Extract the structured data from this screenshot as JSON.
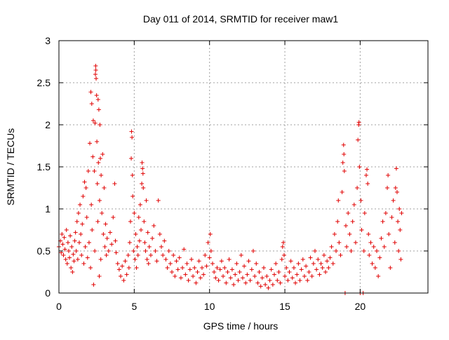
{
  "chart_data": {
    "type": "scatter",
    "title": "Day 011 of 2014, SRMTID for receiver maw1",
    "xlabel": "GPS time / hours",
    "ylabel": "SRMTID / TECUs",
    "xlim": [
      0,
      24.5
    ],
    "ylim": [
      0,
      3
    ],
    "x_ticks": [
      0,
      5,
      10,
      15,
      20
    ],
    "x_tick_labels": [
      "0",
      "5",
      "10",
      "15",
      "20"
    ],
    "y_ticks": [
      0,
      0.5,
      1,
      1.5,
      2,
      2.5,
      3
    ],
    "y_tick_labels": [
      "0",
      "0.5",
      "1",
      "1.5",
      "2",
      "2.5",
      "3"
    ],
    "grid": true,
    "marker": "+",
    "series": [
      {
        "name": "maw1",
        "color": "#e00000",
        "points": [
          [
            0.0,
            0.55
          ],
          [
            0.1,
            0.62
          ],
          [
            0.15,
            0.48
          ],
          [
            0.2,
            0.7
          ],
          [
            0.25,
            0.58
          ],
          [
            0.3,
            0.45
          ],
          [
            0.35,
            0.66
          ],
          [
            0.4,
            0.52
          ],
          [
            0.45,
            0.4
          ],
          [
            0.5,
            0.75
          ],
          [
            0.55,
            0.35
          ],
          [
            0.6,
            0.6
          ],
          [
            0.65,
            0.5
          ],
          [
            0.7,
            0.42
          ],
          [
            0.75,
            0.68
          ],
          [
            0.8,
            0.3
          ],
          [
            0.85,
            0.55
          ],
          [
            0.9,
            0.25
          ],
          [
            0.95,
            0.46
          ],
          [
            1.0,
            0.38
          ],
          [
            1.05,
            0.62
          ],
          [
            1.1,
            0.72
          ],
          [
            1.15,
            0.5
          ],
          [
            1.2,
            0.85
          ],
          [
            1.25,
            0.4
          ],
          [
            1.3,
            0.95
          ],
          [
            1.35,
            0.6
          ],
          [
            1.4,
            1.05
          ],
          [
            1.45,
            0.7
          ],
          [
            1.5,
            0.45
          ],
          [
            1.55,
            0.82
          ],
          [
            1.6,
            1.15
          ],
          [
            1.65,
            0.35
          ],
          [
            1.7,
            1.32
          ],
          [
            1.75,
            0.55
          ],
          [
            1.8,
            1.25
          ],
          [
            1.85,
            0.9
          ],
          [
            1.9,
            0.42
          ],
          [
            1.95,
            1.45
          ],
          [
            2.0,
            0.6
          ],
          [
            2.05,
            1.78
          ],
          [
            2.1,
            0.3
          ],
          [
            2.12,
            2.39
          ],
          [
            2.15,
            1.05
          ],
          [
            2.18,
            2.25
          ],
          [
            2.2,
            0.75
          ],
          [
            2.25,
            1.62
          ],
          [
            2.28,
            2.05
          ],
          [
            2.3,
            0.1
          ],
          [
            2.35,
            1.45
          ],
          [
            2.38,
            0.5
          ],
          [
            2.4,
            2.02
          ],
          [
            2.42,
            2.6
          ],
          [
            2.44,
            2.7
          ],
          [
            2.45,
            2.65
          ],
          [
            2.47,
            2.55
          ],
          [
            2.5,
            2.35
          ],
          [
            2.52,
            1.8
          ],
          [
            2.55,
            1.3
          ],
          [
            2.58,
            0.85
          ],
          [
            2.6,
            2.3
          ],
          [
            2.62,
            1.55
          ],
          [
            2.65,
            2.18
          ],
          [
            2.68,
            0.2
          ],
          [
            2.7,
            1.1
          ],
          [
            2.72,
            2.0
          ],
          [
            2.75,
            1.6
          ],
          [
            2.78,
            0.4
          ],
          [
            2.8,
            1.4
          ],
          [
            2.85,
            0.95
          ],
          [
            2.9,
            1.65
          ],
          [
            2.95,
            0.7
          ],
          [
            3.0,
            1.25
          ],
          [
            3.05,
            0.55
          ],
          [
            3.1,
            0.82
          ],
          [
            3.15,
            0.45
          ],
          [
            3.2,
            0.65
          ],
          [
            3.3,
            0.5
          ],
          [
            3.4,
            0.72
          ],
          [
            3.5,
            0.58
          ],
          [
            3.6,
            0.9
          ],
          [
            3.7,
            1.3
          ],
          [
            3.75,
            0.62
          ],
          [
            3.8,
            0.48
          ],
          [
            3.9,
            0.35
          ],
          [
            4.0,
            0.28
          ],
          [
            4.1,
            0.2
          ],
          [
            4.2,
            0.32
          ],
          [
            4.3,
            0.15
          ],
          [
            4.4,
            0.38
          ],
          [
            4.5,
            0.22
          ],
          [
            4.6,
            0.45
          ],
          [
            4.65,
            0.3
          ],
          [
            4.7,
            0.6
          ],
          [
            4.75,
            0.85
          ],
          [
            4.8,
            1.6
          ],
          [
            4.82,
            1.92
          ],
          [
            4.85,
            1.85
          ],
          [
            4.88,
            1.4
          ],
          [
            4.9,
            1.15
          ],
          [
            4.95,
            0.5
          ],
          [
            5.0,
            0.95
          ],
          [
            5.05,
            0.4
          ],
          [
            5.1,
            0.7
          ],
          [
            5.15,
            0.3
          ],
          [
            5.2,
            0.55
          ],
          [
            5.25,
            0.45
          ],
          [
            5.3,
            0.9
          ],
          [
            5.35,
            0.62
          ],
          [
            5.4,
            1.05
          ],
          [
            5.45,
            0.75
          ],
          [
            5.5,
            1.3
          ],
          [
            5.52,
            1.55
          ],
          [
            5.55,
            1.48
          ],
          [
            5.58,
            1.42
          ],
          [
            5.6,
            1.25
          ],
          [
            5.65,
            0.85
          ],
          [
            5.7,
            0.6
          ],
          [
            5.75,
            0.5
          ],
          [
            5.8,
            1.1
          ],
          [
            5.85,
            0.4
          ],
          [
            5.9,
            0.72
          ],
          [
            5.95,
            0.35
          ],
          [
            6.0,
            0.55
          ],
          [
            6.1,
            0.45
          ],
          [
            6.2,
            0.65
          ],
          [
            6.3,
            0.8
          ],
          [
            6.4,
            0.5
          ],
          [
            6.5,
            0.38
          ],
          [
            6.6,
            1.1
          ],
          [
            6.7,
            0.7
          ],
          [
            6.8,
            0.55
          ],
          [
            6.9,
            0.45
          ],
          [
            7.0,
            0.62
          ],
          [
            7.1,
            0.4
          ],
          [
            7.2,
            0.3
          ],
          [
            7.3,
            0.5
          ],
          [
            7.4,
            0.35
          ],
          [
            7.5,
            0.25
          ],
          [
            7.6,
            0.45
          ],
          [
            7.7,
            0.2
          ],
          [
            7.8,
            0.38
          ],
          [
            7.9,
            0.28
          ],
          [
            8.0,
            0.42
          ],
          [
            8.1,
            0.18
          ],
          [
            8.2,
            0.3
          ],
          [
            8.3,
            0.52
          ],
          [
            8.4,
            0.22
          ],
          [
            8.5,
            0.35
          ],
          [
            8.6,
            0.15
          ],
          [
            8.7,
            0.28
          ],
          [
            8.8,
            0.4
          ],
          [
            8.9,
            0.2
          ],
          [
            9.0,
            0.3
          ],
          [
            9.1,
            0.12
          ],
          [
            9.2,
            0.25
          ],
          [
            9.3,
            0.38
          ],
          [
            9.4,
            0.18
          ],
          [
            9.5,
            0.3
          ],
          [
            9.6,
            0.22
          ],
          [
            9.7,
            0.45
          ],
          [
            9.8,
            0.32
          ],
          [
            9.9,
            0.6
          ],
          [
            10.0,
            0.42
          ],
          [
            10.05,
            0.7
          ],
          [
            10.1,
            0.5
          ],
          [
            10.2,
            0.35
          ],
          [
            10.3,
            0.25
          ],
          [
            10.4,
            0.18
          ],
          [
            10.5,
            0.3
          ],
          [
            10.6,
            0.15
          ],
          [
            10.7,
            0.28
          ],
          [
            10.8,
            0.38
          ],
          [
            10.9,
            0.2
          ],
          [
            11.0,
            0.3
          ],
          [
            11.1,
            0.12
          ],
          [
            11.2,
            0.25
          ],
          [
            11.3,
            0.4
          ],
          [
            11.4,
            0.18
          ],
          [
            11.5,
            0.28
          ],
          [
            11.6,
            0.1
          ],
          [
            11.7,
            0.22
          ],
          [
            11.8,
            0.35
          ],
          [
            11.9,
            0.15
          ],
          [
            12.0,
            0.25
          ],
          [
            12.1,
            0.45
          ],
          [
            12.2,
            0.18
          ],
          [
            12.3,
            0.32
          ],
          [
            12.4,
            0.12
          ],
          [
            12.5,
            0.22
          ],
          [
            12.6,
            0.38
          ],
          [
            12.7,
            0.15
          ],
          [
            12.8,
            0.28
          ],
          [
            12.9,
            0.5
          ],
          [
            13.0,
            0.2
          ],
          [
            13.1,
            0.35
          ],
          [
            13.2,
            0.12
          ],
          [
            13.3,
            0.25
          ],
          [
            13.4,
            0.08
          ],
          [
            13.5,
            0.18
          ],
          [
            13.6,
            0.3
          ],
          [
            13.7,
            0.1
          ],
          [
            13.8,
            0.2
          ],
          [
            13.9,
            0.06
          ],
          [
            14.0,
            0.15
          ],
          [
            14.1,
            0.28
          ],
          [
            14.2,
            0.1
          ],
          [
            14.3,
            0.22
          ],
          [
            14.4,
            0.35
          ],
          [
            14.5,
            0.15
          ],
          [
            14.6,
            0.25
          ],
          [
            14.7,
            0.12
          ],
          [
            14.8,
            0.4
          ],
          [
            14.85,
            0.55
          ],
          [
            14.9,
            0.6
          ],
          [
            14.95,
            0.45
          ],
          [
            15.0,
            0.2
          ],
          [
            15.1,
            0.3
          ],
          [
            15.2,
            0.15
          ],
          [
            15.3,
            0.25
          ],
          [
            15.4,
            0.38
          ],
          [
            15.5,
            0.18
          ],
          [
            15.6,
            0.3
          ],
          [
            15.7,
            0.12
          ],
          [
            15.8,
            0.22
          ],
          [
            15.9,
            0.35
          ],
          [
            16.0,
            0.15
          ],
          [
            16.1,
            0.28
          ],
          [
            16.2,
            0.4
          ],
          [
            16.3,
            0.2
          ],
          [
            16.4,
            0.32
          ],
          [
            16.5,
            0.15
          ],
          [
            16.6,
            0.25
          ],
          [
            16.7,
            0.42
          ],
          [
            16.8,
            0.2
          ],
          [
            16.9,
            0.35
          ],
          [
            17.0,
            0.5
          ],
          [
            17.1,
            0.28
          ],
          [
            17.2,
            0.4
          ],
          [
            17.3,
            0.22
          ],
          [
            17.4,
            0.35
          ],
          [
            17.5,
            0.3
          ],
          [
            17.6,
            0.45
          ],
          [
            17.7,
            0.25
          ],
          [
            17.8,
            0.38
          ],
          [
            17.9,
            0.3
          ],
          [
            18.0,
            0.42
          ],
          [
            18.1,
            0.55
          ],
          [
            18.2,
            0.35
          ],
          [
            18.3,
            0.7
          ],
          [
            18.4,
            0.5
          ],
          [
            18.5,
            0.85
          ],
          [
            18.55,
            1.1
          ],
          [
            18.6,
            0.6
          ],
          [
            18.7,
            0.45
          ],
          [
            18.8,
            1.2
          ],
          [
            18.85,
            1.55
          ],
          [
            18.9,
            1.76
          ],
          [
            18.92,
            1.65
          ],
          [
            18.95,
            1.45
          ],
          [
            19.0,
            0.0
          ],
          [
            19.05,
            0.8
          ],
          [
            19.1,
            0.55
          ],
          [
            19.2,
            0.95
          ],
          [
            19.3,
            0.7
          ],
          [
            19.4,
            0.5
          ],
          [
            19.5,
            0.85
          ],
          [
            19.6,
            1.05
          ],
          [
            19.7,
            0.6
          ],
          [
            19.8,
            1.25
          ],
          [
            19.85,
            1.82
          ],
          [
            19.9,
            2.0
          ],
          [
            19.92,
            2.03
          ],
          [
            19.95,
            1.5
          ],
          [
            20.0,
            0.0
          ],
          [
            20.05,
            1.1
          ],
          [
            20.1,
            0.75
          ],
          [
            20.2,
            0.0
          ],
          [
            20.25,
            0.5
          ],
          [
            20.3,
            0.95
          ],
          [
            20.4,
            1.4
          ],
          [
            20.45,
            1.47
          ],
          [
            20.5,
            1.3
          ],
          [
            20.55,
            0.7
          ],
          [
            20.6,
            0.45
          ],
          [
            20.7,
            0.6
          ],
          [
            20.8,
            0.35
          ],
          [
            20.9,
            0.55
          ],
          [
            21.0,
            0.3
          ],
          [
            21.1,
            0.5
          ],
          [
            21.2,
            0.2
          ],
          [
            21.3,
            0.42
          ],
          [
            21.4,
            0.65
          ],
          [
            21.5,
            0.85
          ],
          [
            21.6,
            0.55
          ],
          [
            21.7,
            0.95
          ],
          [
            21.8,
            1.25
          ],
          [
            21.85,
            1.4
          ],
          [
            21.9,
            0.7
          ],
          [
            22.0,
            0.3
          ],
          [
            22.1,
            0.9
          ],
          [
            22.2,
            1.1
          ],
          [
            22.3,
            0.6
          ],
          [
            22.35,
            1.25
          ],
          [
            22.4,
            1.48
          ],
          [
            22.45,
            1.2
          ],
          [
            22.5,
            0.85
          ],
          [
            22.55,
            0.5
          ],
          [
            22.6,
            1.0
          ],
          [
            22.65,
            0.75
          ],
          [
            22.7,
            0.4
          ],
          [
            22.75,
            0.95
          ]
        ]
      }
    ]
  }
}
